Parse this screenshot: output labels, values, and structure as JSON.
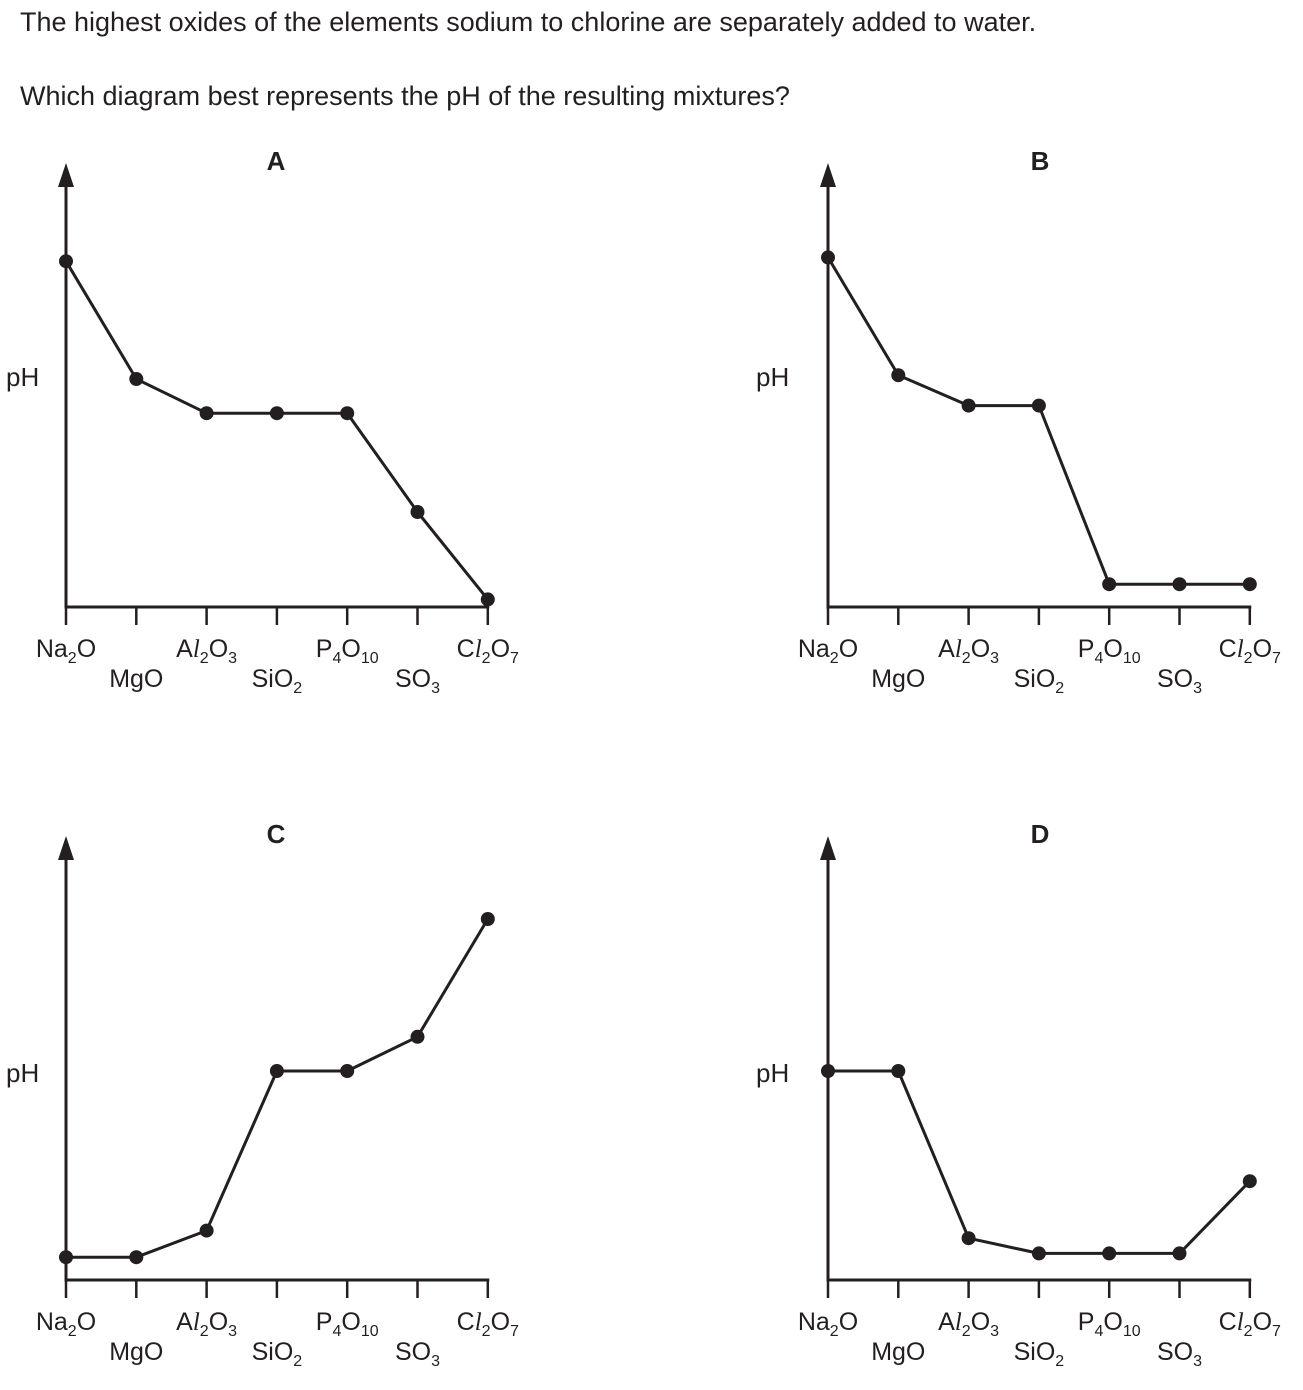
{
  "question": {
    "line1": "The highest oxides of the elements sodium to chlorine are separately added to water.",
    "line2": "Which diagram best represents the pH of the resulting mixtures?"
  },
  "ylabel": "pH",
  "oxides": [
    {
      "main": "Na",
      "sub": "2",
      "tail": "O",
      "italic": false,
      "row": "top"
    },
    {
      "main": "MgO",
      "sub": "",
      "tail": "",
      "italic": false,
      "row": "bottom"
    },
    {
      "main": "A",
      "ital": "l",
      "sub": "2",
      "tail": "O",
      "sub2": "3",
      "row": "top"
    },
    {
      "main": "SiO",
      "sub": "2",
      "tail": "",
      "row": "bottom"
    },
    {
      "main": "P",
      "sub": "4",
      "tail": "O",
      "sub2": "10",
      "row": "top"
    },
    {
      "main": "SO",
      "sub": "3",
      "tail": "",
      "row": "bottom"
    },
    {
      "main": "C",
      "ital": "l",
      "sub": "2",
      "tail": "O",
      "sub2": "7",
      "row": "top"
    }
  ],
  "chart_data": [
    {
      "type": "line",
      "title": "A",
      "categories": [
        "Na2O",
        "MgO",
        "Al2O3",
        "SiO2",
        "P4O10",
        "SO3",
        "Cl2O7"
      ],
      "series": [
        {
          "values": [
            0.91,
            0.6,
            0.51,
            0.51,
            0.51,
            0.25,
            0.02
          ]
        }
      ],
      "ylabel": "pH",
      "ylim": [
        0,
        1
      ],
      "axis_ticks_labeled": false
    },
    {
      "type": "line",
      "title": "B",
      "categories": [
        "Na2O",
        "MgO",
        "Al2O3",
        "SiO2",
        "P4O10",
        "SO3",
        "Cl2O7"
      ],
      "series": [
        {
          "values": [
            0.92,
            0.61,
            0.53,
            0.53,
            0.06,
            0.06,
            0.06
          ]
        }
      ],
      "ylabel": "pH",
      "ylim": [
        0,
        1
      ],
      "axis_ticks_labeled": false
    },
    {
      "type": "line",
      "title": "C",
      "categories": [
        "Na2O",
        "MgO",
        "Al2O3",
        "SiO2",
        "P4O10",
        "SO3",
        "Cl2O7"
      ],
      "series": [
        {
          "values": [
            0.06,
            0.06,
            0.13,
            0.55,
            0.55,
            0.64,
            0.95
          ]
        }
      ],
      "ylabel": "pH",
      "ylim": [
        0,
        1
      ],
      "axis_ticks_labeled": false
    },
    {
      "type": "line",
      "title": "D",
      "categories": [
        "Na2O",
        "MgO",
        "Al2O3",
        "SiO2",
        "P4O10",
        "SO3",
        "Cl2O7"
      ],
      "series": [
        {
          "values": [
            0.55,
            0.55,
            0.11,
            0.07,
            0.07,
            0.07,
            0.26
          ]
        }
      ],
      "ylabel": "pH",
      "ylim": [
        0,
        1
      ],
      "axis_ticks_labeled": false
    }
  ]
}
